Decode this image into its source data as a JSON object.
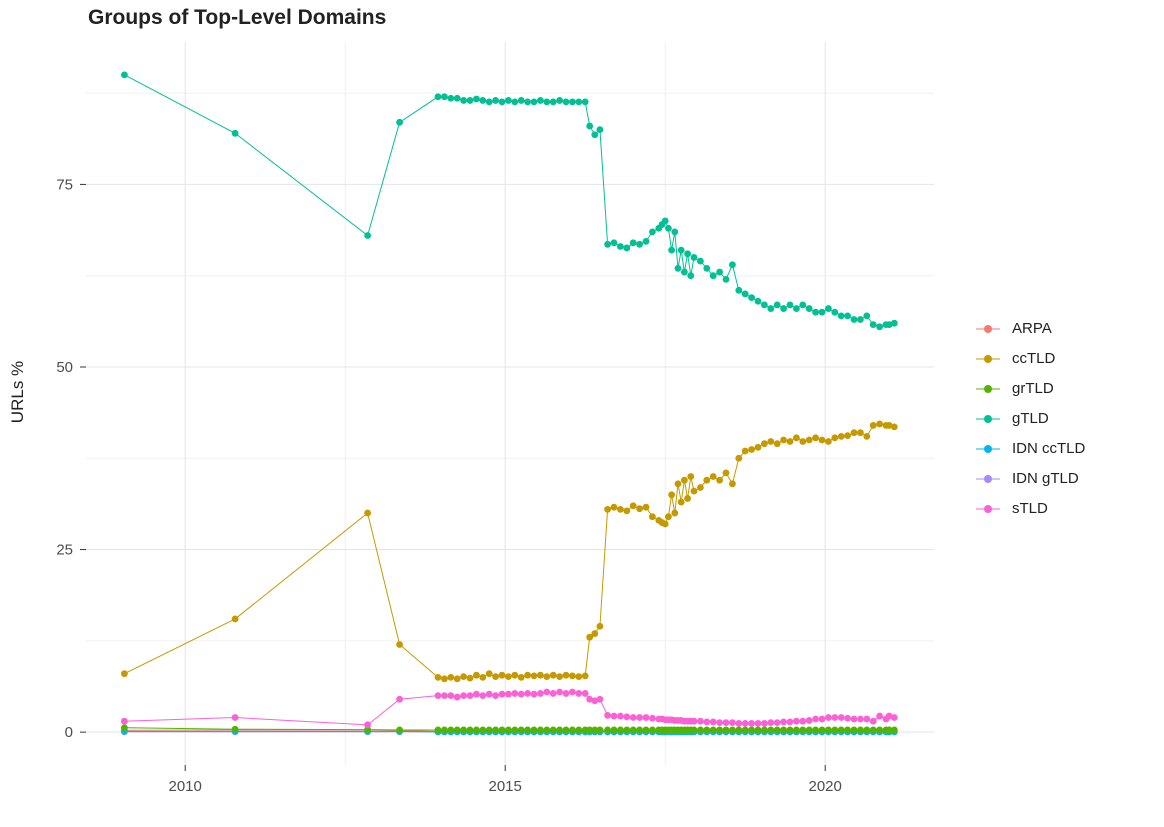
{
  "chart_data": {
    "type": "scatter",
    "title": "Groups of Top-Level Domains",
    "xlabel": "",
    "ylabel": "URLs %",
    "x_ticks": [
      2010,
      2015,
      2020
    ],
    "y_ticks": [
      0,
      25,
      50,
      75
    ],
    "x_minor_gridlines": [
      2012.5,
      2017.5
    ],
    "y_minor_gridlines": [
      12.5,
      37.5,
      62.5,
      87.5
    ],
    "xlim": [
      2008.45,
      2021.7
    ],
    "ylim": [
      -4.5,
      94.5
    ],
    "grid": true,
    "legend_position": "right",
    "point_and_line": true,
    "x": [
      2009.05,
      2010.78,
      2012.85,
      2013.35,
      2013.95,
      2014.05,
      2014.15,
      2014.25,
      2014.35,
      2014.45,
      2014.55,
      2014.65,
      2014.75,
      2014.85,
      2014.95,
      2015.05,
      2015.15,
      2015.25,
      2015.35,
      2015.45,
      2015.55,
      2015.65,
      2015.75,
      2015.85,
      2015.95,
      2016.05,
      2016.15,
      2016.25,
      2016.32,
      2016.4,
      2016.48,
      2016.6,
      2016.7,
      2016.8,
      2016.9,
      2017.0,
      2017.1,
      2017.2,
      2017.3,
      2017.4,
      2017.45,
      2017.5,
      2017.55,
      2017.6,
      2017.65,
      2017.7,
      2017.75,
      2017.8,
      2017.85,
      2017.9,
      2017.95,
      2018.05,
      2018.15,
      2018.25,
      2018.35,
      2018.45,
      2018.55,
      2018.65,
      2018.75,
      2018.85,
      2018.95,
      2019.05,
      2019.15,
      2019.25,
      2019.35,
      2019.45,
      2019.55,
      2019.65,
      2019.75,
      2019.85,
      2019.95,
      2020.05,
      2020.15,
      2020.25,
      2020.35,
      2020.45,
      2020.55,
      2020.65,
      2020.75,
      2020.85,
      2020.95,
      2021.0,
      2021.08
    ],
    "series": [
      {
        "name": "ARPA",
        "color": "#F8766D",
        "values": [
          0.25,
          0.3,
          0.3,
          0.2,
          0.1,
          0.1,
          0.1,
          0.1,
          0.1,
          0.1,
          0.1,
          0.1,
          0.1,
          0.1,
          0.1,
          0.1,
          0.1,
          0.1,
          0.1,
          0.1,
          0.1,
          0.1,
          0.1,
          0.1,
          0.1,
          0.1,
          0.1,
          0.1,
          0.1,
          0.1,
          0.1,
          0.1,
          0.1,
          0.1,
          0.1,
          0.1,
          0.1,
          0.1,
          0.1,
          0.1,
          0.1,
          0.1,
          0.1,
          0.1,
          0.1,
          0.1,
          0.1,
          0.1,
          0.1,
          0.1,
          0.1,
          0.1,
          0.1,
          0.1,
          0.1,
          0.1,
          0.1,
          0.1,
          0.1,
          0.1,
          0.1,
          0.1,
          0.1,
          0.1,
          0.1,
          0.1,
          0.1,
          0.1,
          0.1,
          0.1,
          0.1,
          0.1,
          0.1,
          0.1,
          0.1,
          0.1,
          0.1,
          0.1,
          0.1,
          0.1,
          0.1,
          0.1,
          0.1
        ]
      },
      {
        "name": "ccTLD",
        "color": "#C49A00",
        "values": [
          8,
          15.5,
          30,
          12,
          7.5,
          7.3,
          7.5,
          7.3,
          7.6,
          7.4,
          7.8,
          7.5,
          8,
          7.6,
          7.8,
          7.6,
          7.8,
          7.5,
          7.8,
          7.7,
          7.8,
          7.6,
          7.8,
          7.6,
          7.8,
          7.7,
          7.6,
          7.7,
          13,
          13.5,
          14.5,
          30.5,
          30.8,
          30.5,
          30.3,
          31,
          30.6,
          30.8,
          29.5,
          29,
          28.7,
          28.5,
          29.5,
          32.5,
          30,
          34,
          31.5,
          34.5,
          32,
          35,
          33,
          33.5,
          34.5,
          35,
          34.5,
          35.5,
          34,
          37.5,
          38.5,
          38.7,
          39,
          39.5,
          39.8,
          39.5,
          40,
          39.8,
          40.3,
          39.8,
          40,
          40.3,
          40,
          39.8,
          40.3,
          40.5,
          40.6,
          41,
          41,
          40.5,
          42,
          42.2,
          42,
          42,
          41.8
        ]
      },
      {
        "name": "grTLD",
        "color": "#53B400",
        "values": [
          0.6,
          0.4,
          0.35,
          0.3,
          0.3,
          0.3,
          0.3,
          0.3,
          0.3,
          0.3,
          0.3,
          0.3,
          0.3,
          0.3,
          0.3,
          0.3,
          0.3,
          0.3,
          0.3,
          0.3,
          0.3,
          0.3,
          0.3,
          0.3,
          0.3,
          0.3,
          0.3,
          0.3,
          0.3,
          0.3,
          0.3,
          0.3,
          0.3,
          0.3,
          0.3,
          0.3,
          0.3,
          0.3,
          0.3,
          0.3,
          0.3,
          0.3,
          0.3,
          0.3,
          0.3,
          0.3,
          0.3,
          0.3,
          0.3,
          0.3,
          0.3,
          0.3,
          0.3,
          0.3,
          0.3,
          0.3,
          0.3,
          0.3,
          0.3,
          0.3,
          0.3,
          0.3,
          0.3,
          0.3,
          0.3,
          0.3,
          0.3,
          0.3,
          0.3,
          0.3,
          0.3,
          0.3,
          0.3,
          0.3,
          0.3,
          0.3,
          0.3,
          0.3,
          0.3,
          0.3,
          0.3,
          0.3,
          0.3
        ]
      },
      {
        "name": "gTLD",
        "color": "#00C094",
        "values": [
          90,
          82,
          68,
          83.5,
          87,
          87,
          86.8,
          86.8,
          86.5,
          86.5,
          86.7,
          86.5,
          86.3,
          86.5,
          86.3,
          86.5,
          86.3,
          86.5,
          86.3,
          86.3,
          86.5,
          86.3,
          86.3,
          86.5,
          86.3,
          86.3,
          86.3,
          86.3,
          83,
          81.8,
          82.5,
          66.8,
          67,
          66.5,
          66.3,
          67,
          66.8,
          67.2,
          68.5,
          69,
          69.5,
          70,
          69,
          66,
          68.5,
          63.5,
          66,
          63,
          65.5,
          62.5,
          65,
          64.5,
          63.5,
          62.5,
          63,
          62,
          64,
          60.5,
          60,
          59.5,
          59,
          58.5,
          58,
          58.5,
          58,
          58.5,
          58,
          58.5,
          58,
          57.5,
          57.5,
          58,
          57.5,
          57,
          57,
          56.5,
          56.5,
          57,
          55.8,
          55.5,
          55.8,
          55.8,
          56
        ]
      },
      {
        "name": "IDN ccTLD",
        "color": "#00B6EB",
        "values": [
          0.1,
          0.1,
          0.1,
          0.1,
          0.05,
          0.05,
          0.05,
          0.05,
          0.05,
          0.05,
          0.05,
          0.05,
          0.05,
          0.05,
          0.05,
          0.05,
          0.05,
          0.05,
          0.05,
          0.05,
          0.05,
          0.05,
          0.05,
          0.05,
          0.05,
          0.05,
          0.05,
          0.05,
          0.05,
          0.05,
          0.05,
          0.05,
          0.05,
          0.05,
          0.05,
          0.05,
          0.05,
          0.05,
          0.05,
          0.05,
          0.05,
          0.05,
          0.05,
          0.05,
          0.05,
          0.05,
          0.05,
          0.05,
          0.05,
          0.05,
          0.05,
          0.05,
          0.05,
          0.05,
          0.05,
          0.05,
          0.05,
          0.05,
          0.05,
          0.05,
          0.05,
          0.05,
          0.05,
          0.05,
          0.05,
          0.05,
          0.05,
          0.05,
          0.05,
          0.05,
          0.05,
          0.05,
          0.05,
          0.05,
          0.05,
          0.05,
          0.05,
          0.05,
          0.05,
          0.05,
          0.05,
          0.05,
          0.05
        ]
      },
      {
        "name": "IDN gTLD",
        "color": "#A58AFF",
        "values": [
          0.05,
          0.05,
          0.05,
          0.05,
          0.02,
          0.02,
          0.02,
          0.02,
          0.02,
          0.02,
          0.02,
          0.02,
          0.02,
          0.02,
          0.02,
          0.02,
          0.02,
          0.02,
          0.02,
          0.02,
          0.02,
          0.02,
          0.02,
          0.02,
          0.02,
          0.02,
          0.02,
          0.02,
          0.02,
          0.02,
          0.02,
          0.02,
          0.02,
          0.02,
          0.02,
          0.02,
          0.02,
          0.02,
          0.02,
          0.02,
          0.02,
          0.02,
          0.02,
          0.02,
          0.02,
          0.02,
          0.02,
          0.02,
          0.02,
          0.02,
          0.02,
          0.02,
          0.02,
          0.02,
          0.02,
          0.02,
          0.02,
          0.02,
          0.02,
          0.02,
          0.02,
          0.02,
          0.02,
          0.02,
          0.02,
          0.02,
          0.02,
          0.02,
          0.02,
          0.02,
          0.02,
          0.02,
          0.02,
          0.02,
          0.02,
          0.02,
          0.02,
          0.02,
          0.02,
          0.02,
          0.02,
          0.02,
          0.02
        ]
      },
      {
        "name": "sTLD",
        "color": "#FB61D7",
        "values": [
          1.5,
          2,
          1,
          4.5,
          5,
          5,
          5,
          4.8,
          5,
          5,
          5.2,
          5,
          5.2,
          5,
          5.2,
          5.2,
          5.3,
          5.2,
          5.3,
          5.2,
          5.3,
          5.5,
          5.3,
          5.5,
          5.3,
          5.5,
          5.3,
          5.3,
          4.5,
          4.3,
          4.5,
          2.3,
          2.2,
          2.2,
          2.1,
          2,
          2,
          2,
          1.9,
          1.8,
          1.8,
          1.7,
          1.7,
          1.7,
          1.6,
          1.6,
          1.6,
          1.5,
          1.5,
          1.5,
          1.5,
          1.5,
          1.4,
          1.4,
          1.3,
          1.3,
          1.3,
          1.2,
          1.2,
          1.2,
          1.2,
          1.2,
          1.3,
          1.3,
          1.4,
          1.4,
          1.5,
          1.5,
          1.6,
          1.8,
          1.8,
          2,
          2,
          2,
          1.9,
          1.8,
          1.8,
          1.8,
          1.5,
          2.2,
          1.8,
          2.2,
          2
        ]
      }
    ],
    "colors": {
      "grid_major": "#E4E4E4",
      "grid_minor": "#F0F0F0",
      "axis_text": "#4d4d4d",
      "tick_mark": "#333333",
      "background": "#ffffff"
    }
  }
}
